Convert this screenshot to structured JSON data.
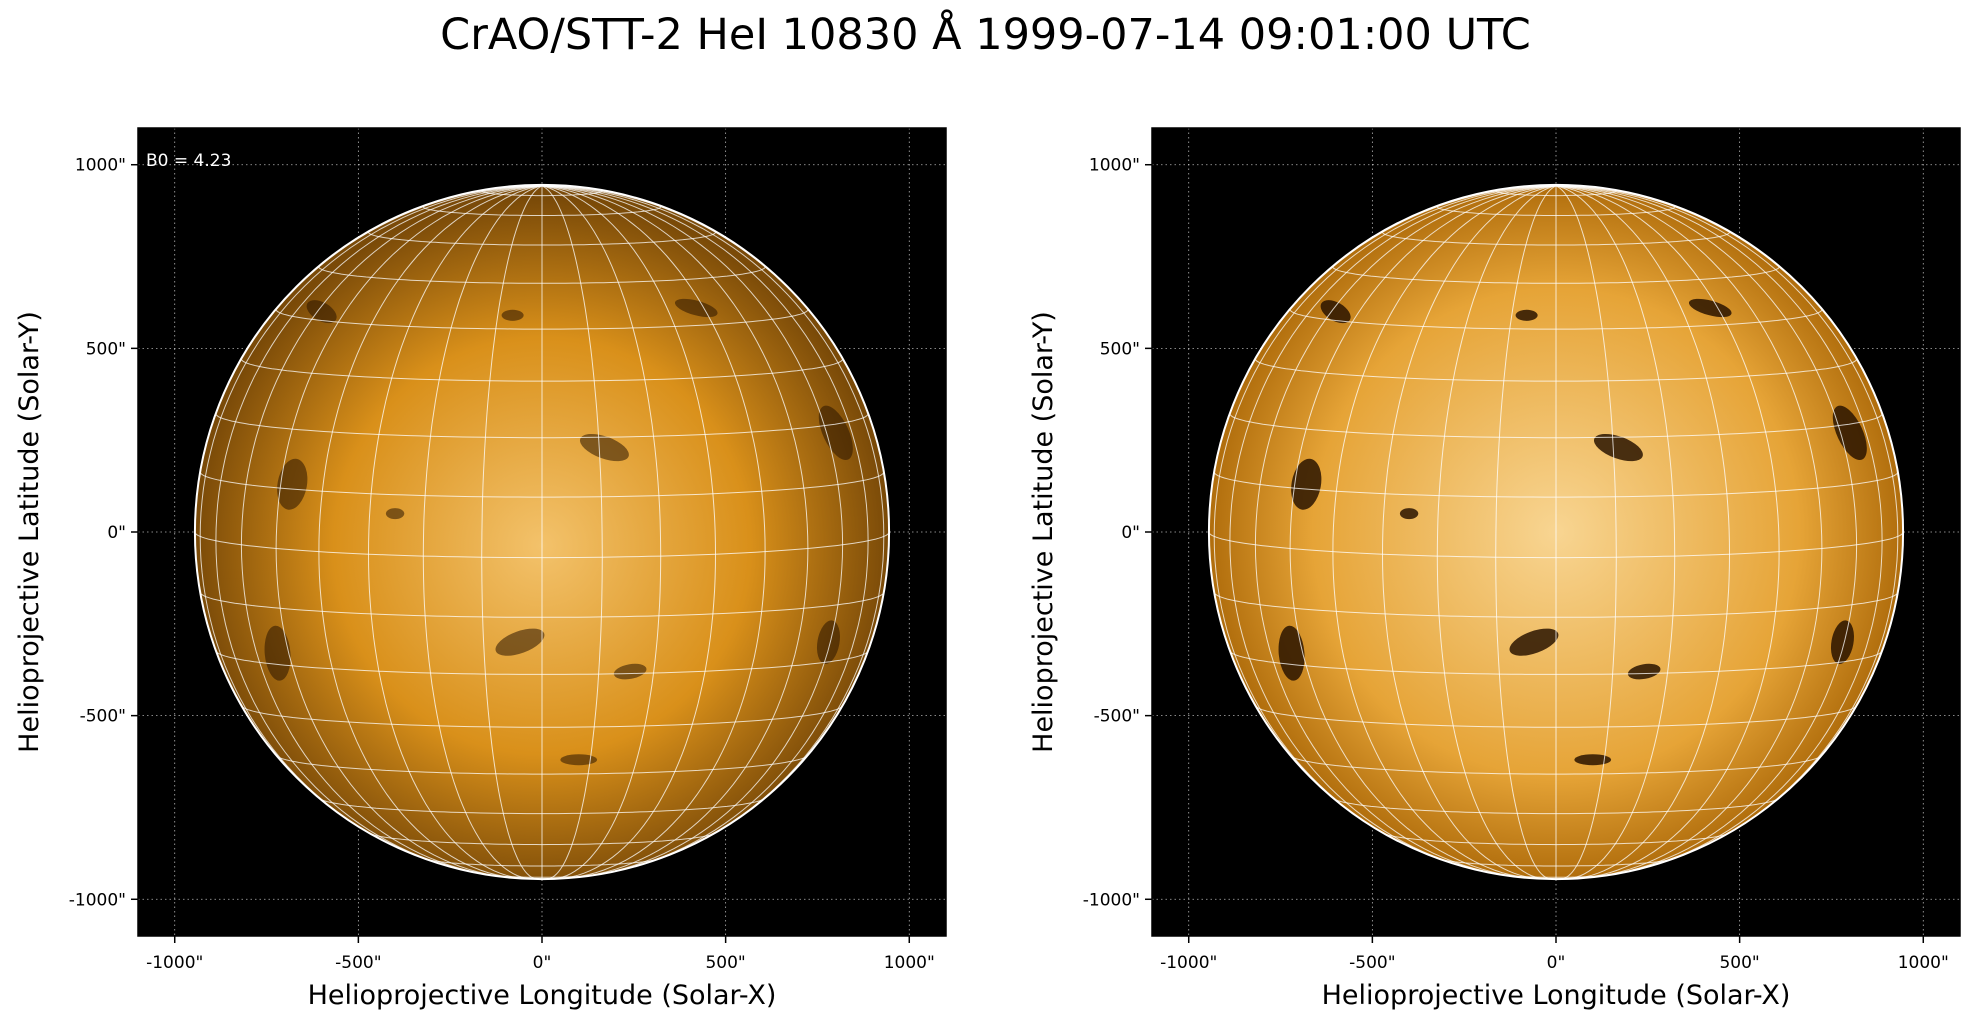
{
  "figure": {
    "title": "CrAO/STT-2 HeI 10830 Å 1999-07-14 09:01:00 UTC"
  },
  "panels": [
    {
      "id": "left",
      "annotation": "B0 = 4.23",
      "xlabel": "Helioprojective Longitude (Solar-X)",
      "ylabel": "Helioprojective Latitude (Solar-Y)",
      "contrast": "normal"
    },
    {
      "id": "right",
      "annotation": "",
      "xlabel": "Helioprojective Longitude (Solar-X)",
      "ylabel": "Helioprojective Latitude (Solar-Y)",
      "contrast": "enhanced"
    }
  ],
  "axes": {
    "x_ticks": [
      "-1000\"",
      "-500\"",
      "0\"",
      "500\"",
      "1000\""
    ],
    "y_ticks": [
      "1000\"",
      "500\"",
      "0\"",
      "-500\"",
      "-1000\""
    ],
    "tick_values": [
      -1000,
      -500,
      0,
      500,
      1000
    ],
    "range": [
      -1100,
      1100
    ],
    "solar_radius_arcsec": 945
  },
  "colors": {
    "background": "#000000",
    "disk_center": "#f6c56a",
    "disk_mid": "#d48a14",
    "disk_limb": "#7a4a08",
    "grid": "#ffffff",
    "limb_circle": "#ffffff"
  }
}
